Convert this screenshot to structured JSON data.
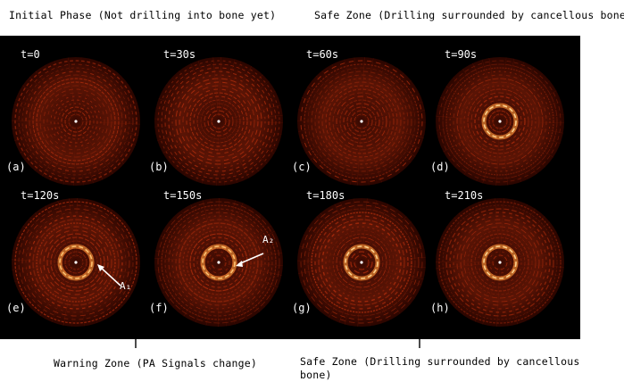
{
  "top_labels": {
    "initial": "Initial Phase (Not drilling into bone yet)",
    "safe_top": "Safe Zone (Drilling surrounded by cancellous bone)"
  },
  "bottom_labels": {
    "warning": "Warning Zone (PA Signals change)",
    "safe_bottom_line1": "Safe Zone (Drilling surrounded by cancellous",
    "safe_bottom_line2": "bone)"
  },
  "panels": [
    {
      "time": "t=0",
      "tag": "(a)",
      "ring": 0,
      "ring_color": ""
    },
    {
      "time": "t=30s",
      "tag": "(b)",
      "ring": 0,
      "ring_color": ""
    },
    {
      "time": "t=60s",
      "tag": "(c)",
      "ring": 0,
      "ring_color": ""
    },
    {
      "time": "t=90s",
      "tag": "(d)",
      "ring": 1,
      "ring_color": "#ffd08a"
    },
    {
      "time": "t=120s",
      "tag": "(e)",
      "ring": 1,
      "ring_color": "#ffc070"
    },
    {
      "time": "t=150s",
      "tag": "(f)",
      "ring": 1,
      "ring_color": "#ffc070"
    },
    {
      "time": "t=180s",
      "tag": "(g)",
      "ring": 1,
      "ring_color": "#ffd08a"
    },
    {
      "time": "t=210s",
      "tag": "(h)",
      "ring": 1,
      "ring_color": "#ffd08a"
    }
  ],
  "arrows": {
    "a1": "A₁",
    "a2": "A₂"
  },
  "colors": {
    "background": "#000000",
    "speckle": "#b8300e",
    "ring": "#ffd08a",
    "text": "#ffffff"
  }
}
